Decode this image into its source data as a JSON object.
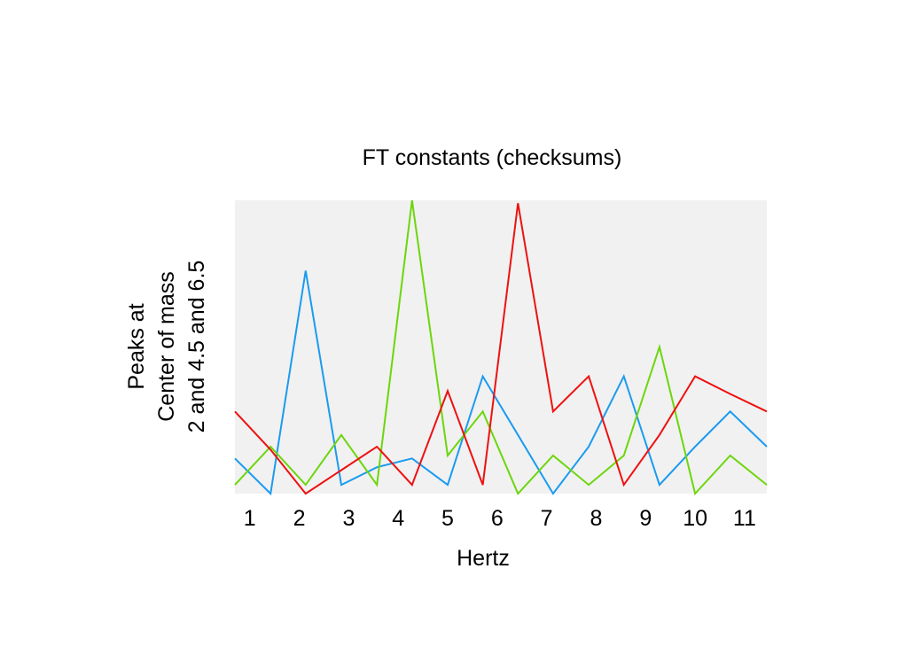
{
  "chart_data": {
    "type": "line",
    "title": "FT constants (checksums)",
    "xlabel": "Hertz",
    "ylabel_lines": [
      "Peaks at",
      "Center of mass",
      "2 and  4.5 and  6.5"
    ],
    "x_ticks": [
      "1",
      "2",
      "3",
      "4",
      "5",
      "6",
      "7",
      "8",
      "9",
      "10",
      "11"
    ],
    "xlim": [
      0.7,
      11.45
    ],
    "ylim": [
      0,
      100
    ],
    "grid": false,
    "legend": "none",
    "plot_background": "#f1f1f1",
    "series": [
      {
        "color": "#1a9bf0",
        "x": [
          0.7,
          1.42,
          2.13,
          2.85,
          3.57,
          4.28,
          5.0,
          5.71,
          6.42,
          7.13,
          7.85,
          8.56,
          9.28,
          10.0,
          10.71,
          11.45
        ],
        "y": [
          12,
          0,
          76,
          3,
          9,
          12,
          3,
          40,
          20,
          0,
          16,
          40,
          3,
          16,
          28,
          16
        ]
      },
      {
        "color": "#6cd60c",
        "x": [
          0.7,
          1.42,
          2.13,
          2.85,
          3.57,
          4.28,
          5.0,
          5.71,
          6.42,
          7.13,
          7.85,
          8.56,
          9.28,
          10.0,
          10.71,
          11.45
        ],
        "y": [
          3,
          16,
          3,
          20,
          3,
          100,
          13,
          28,
          0,
          13,
          3,
          13,
          50,
          0,
          13,
          3
        ]
      },
      {
        "color": "#ee1111",
        "x": [
          0.7,
          1.42,
          2.13,
          2.85,
          3.57,
          4.28,
          5.0,
          5.71,
          6.42,
          7.13,
          7.85,
          8.56,
          9.28,
          10.0,
          10.71,
          11.45
        ],
        "y": [
          28,
          15,
          0,
          8,
          16,
          3,
          35,
          3,
          99,
          28,
          40,
          3,
          20,
          40,
          34,
          28
        ]
      }
    ]
  }
}
